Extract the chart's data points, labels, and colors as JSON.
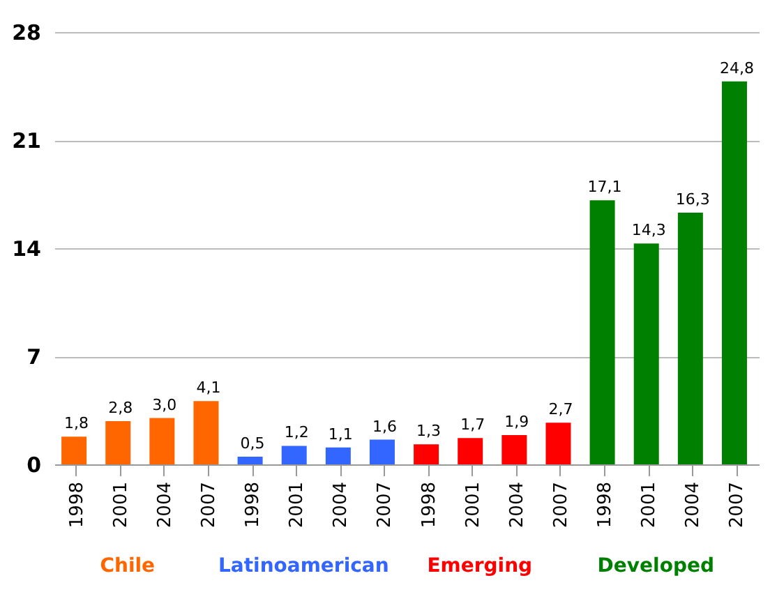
{
  "chart_data": {
    "type": "bar",
    "categories": [
      "1998",
      "2001",
      "2004",
      "2007",
      "1998",
      "2001",
      "2004",
      "2007",
      "1998",
      "2001",
      "2004",
      "2007",
      "1998",
      "2001",
      "2004",
      "2007"
    ],
    "series": [
      {
        "name": "Chile",
        "color": "#ff6600",
        "values": [
          1.8,
          2.8,
          3.0,
          4.1,
          null,
          null,
          null,
          null,
          null,
          null,
          null,
          null,
          null,
          null,
          null,
          null
        ],
        "value_labels": [
          "1,8",
          "2,8",
          "3,0",
          "4,1",
          null,
          null,
          null,
          null,
          null,
          null,
          null,
          null,
          null,
          null,
          null,
          null
        ]
      },
      {
        "name": "Latinoamerican",
        "color": "#3366ff",
        "values": [
          null,
          null,
          null,
          null,
          0.5,
          1.2,
          1.1,
          1.6,
          null,
          null,
          null,
          null,
          null,
          null,
          null,
          null
        ],
        "value_labels": [
          null,
          null,
          null,
          null,
          "0,5",
          "1,2",
          "1,1",
          "1,6",
          null,
          null,
          null,
          null,
          null,
          null,
          null,
          null
        ]
      },
      {
        "name": "Emerging",
        "color": "#ff0000",
        "values": [
          null,
          null,
          null,
          null,
          null,
          null,
          null,
          null,
          1.3,
          1.7,
          1.9,
          2.7,
          null,
          null,
          null,
          null
        ],
        "value_labels": [
          null,
          null,
          null,
          null,
          null,
          null,
          null,
          null,
          "1,3",
          "1,7",
          "1,9",
          "2,7",
          null,
          null,
          null,
          null
        ]
      },
      {
        "name": "Developed",
        "color": "#008000",
        "values": [
          null,
          null,
          null,
          null,
          null,
          null,
          null,
          null,
          null,
          null,
          null,
          null,
          17.1,
          14.3,
          16.3,
          24.8
        ],
        "value_labels": [
          null,
          null,
          null,
          null,
          null,
          null,
          null,
          null,
          null,
          null,
          null,
          null,
          "17,1",
          "14,3",
          "16,3",
          "24,8"
        ]
      }
    ],
    "ylim": [
      0,
      28
    ],
    "yticks": [
      0,
      7,
      14,
      21,
      28
    ],
    "grid": "y",
    "legend": false
  }
}
